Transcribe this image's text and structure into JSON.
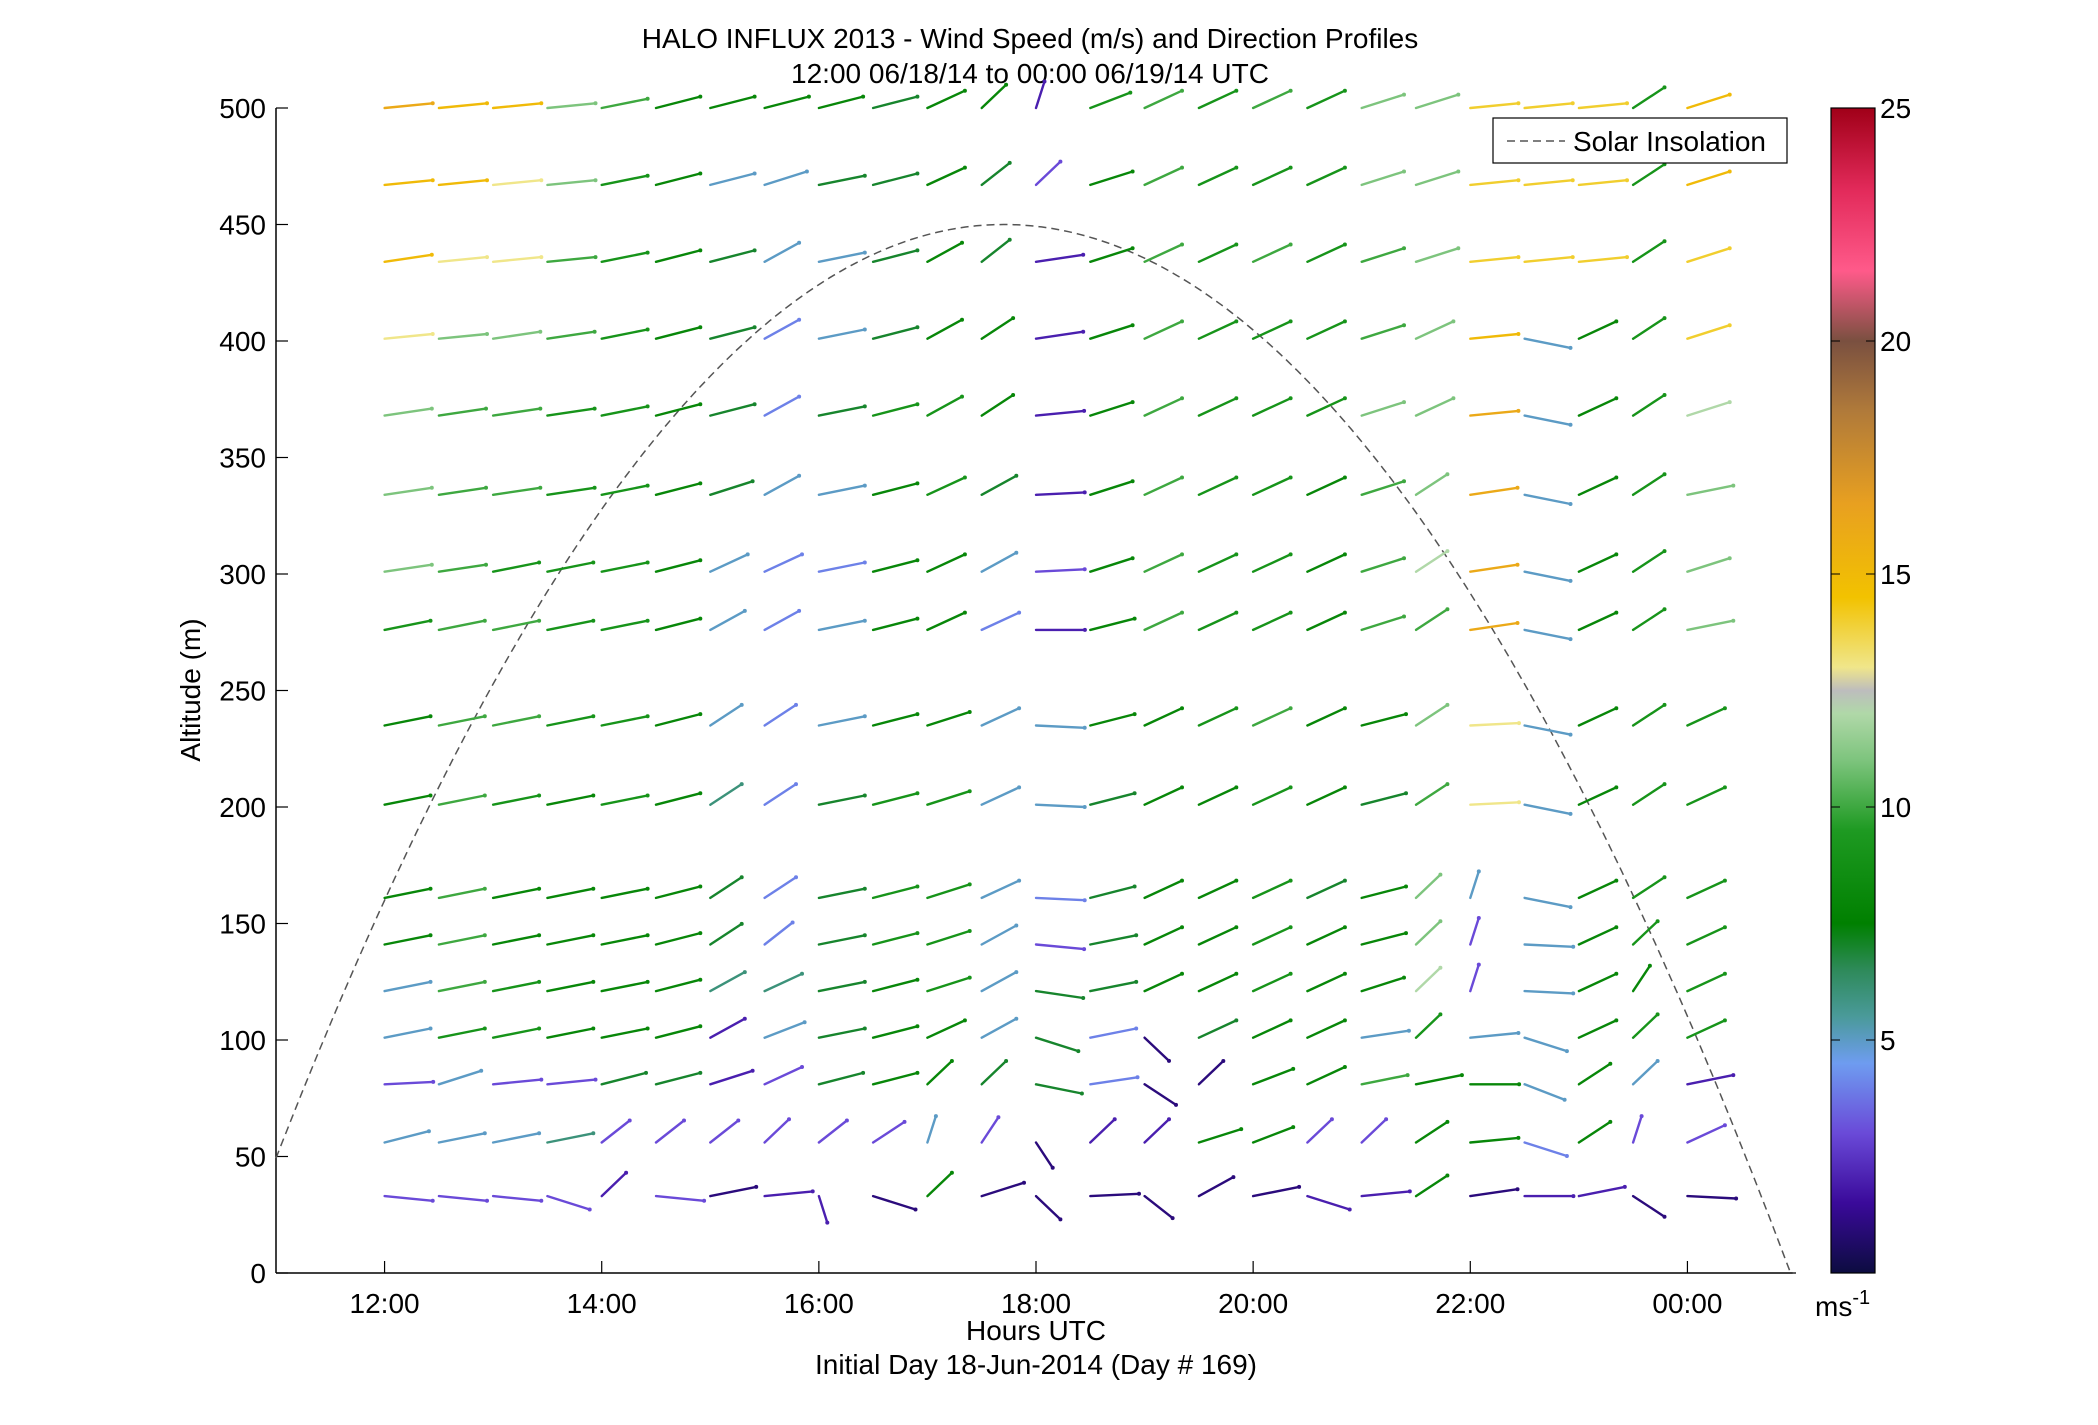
{
  "chart_data": {
    "type": "scatter",
    "title": "HALO INFLUX 2013 - Wind Speed (m/s) and Direction Profiles",
    "subtitle": "12:00 06/18/14 to 00:00 06/19/14  UTC",
    "xlabel": "Hours UTC",
    "ylabel": "Altitude (m)",
    "footer": "Initial Day 18-Jun-2014 (Day # 169)",
    "x_range_hours": [
      11,
      25
    ],
    "y_range": [
      0,
      500
    ],
    "x_ticks": [
      {
        "hour": 12,
        "label": "12:00"
      },
      {
        "hour": 14,
        "label": "14:00"
      },
      {
        "hour": 16,
        "label": "16:00"
      },
      {
        "hour": 18,
        "label": "18:00"
      },
      {
        "hour": 20,
        "label": "20:00"
      },
      {
        "hour": 22,
        "label": "22:00"
      },
      {
        "hour": 24,
        "label": "00:00"
      }
    ],
    "y_ticks": [
      0,
      50,
      100,
      150,
      200,
      250,
      300,
      350,
      400,
      450,
      500
    ],
    "legend": {
      "entries": [
        "Solar Insolation"
      ],
      "placement": "top-right"
    },
    "colorbar": {
      "range": [
        0,
        25
      ],
      "ticks": [
        5,
        10,
        15,
        20,
        25
      ],
      "unit_label": "ms",
      "unit_exponent": "-1"
    },
    "solar_insolation": {
      "peak_hour": 17.7,
      "peak_altitude": 450,
      "zero_hours": [
        10.6,
        24.95
      ]
    },
    "vector_layout": {
      "length_hours": 0.45,
      "slope_factor": 0.55
    },
    "altitudes": [
      33,
      56,
      81,
      101,
      121,
      141,
      161,
      201,
      235,
      276,
      301,
      334,
      368,
      401,
      434,
      467,
      500
    ],
    "hours": [
      12,
      12.5,
      13,
      13.5,
      14,
      14.5,
      15,
      15.5,
      16,
      16.5,
      17,
      17.5,
      18,
      18.5,
      19,
      19.5,
      20,
      20.5,
      21,
      21.5,
      22,
      22.5,
      23,
      23.5,
      24
    ],
    "wind_profiles": [
      {
        "time": "12:00",
        "hour": 12,
        "speeds": [
          3,
          5,
          3,
          5,
          5,
          8,
          8,
          8,
          8,
          9,
          11,
          11,
          11,
          13,
          15,
          15,
          16
        ],
        "angles": [
          -10,
          25,
          5,
          20,
          20,
          20,
          20,
          20,
          20,
          20,
          15,
          15,
          15,
          10,
          15,
          10,
          10
        ]
      },
      {
        "time": "12:30",
        "hour": 12.5,
        "speeds": [
          3,
          5,
          5,
          9,
          10,
          10,
          10,
          10,
          10,
          10,
          10,
          10,
          10,
          11,
          13,
          15,
          15
        ],
        "angles": [
          -10,
          20,
          30,
          20,
          20,
          20,
          20,
          20,
          20,
          20,
          15,
          15,
          15,
          10,
          10,
          10,
          10
        ]
      },
      {
        "time": "13:00",
        "hour": 13,
        "speeds": [
          3,
          5,
          3,
          9,
          9,
          8,
          8,
          9,
          10,
          10,
          9,
          10,
          10,
          11,
          13,
          13,
          15
        ],
        "angles": [
          -10,
          20,
          10,
          20,
          20,
          20,
          20,
          20,
          20,
          20,
          20,
          15,
          15,
          15,
          10,
          10,
          10
        ]
      },
      {
        "time": "13:30",
        "hour": 13.5,
        "speeds": [
          3,
          6,
          3,
          8,
          8,
          8,
          8,
          8,
          9,
          9,
          9,
          9,
          9,
          10,
          10,
          11,
          11
        ],
        "angles": [
          -30,
          20,
          10,
          20,
          20,
          20,
          20,
          20,
          20,
          20,
          20,
          15,
          15,
          15,
          10,
          10,
          10
        ]
      },
      {
        "time": "14:00",
        "hour": 14,
        "speeds": [
          2,
          3,
          7,
          8,
          8,
          8,
          8,
          9,
          9,
          9,
          9,
          9,
          9,
          9,
          9,
          9,
          10
        ],
        "angles": [
          60,
          55,
          25,
          20,
          20,
          20,
          20,
          20,
          20,
          20,
          20,
          20,
          20,
          20,
          20,
          20,
          20
        ]
      },
      {
        "time": "14:30",
        "hour": 14.5,
        "speeds": [
          3,
          3,
          7,
          8,
          8,
          8,
          8,
          8,
          8,
          8,
          8,
          8,
          8,
          8,
          8,
          8,
          8
        ],
        "angles": [
          -10,
          55,
          25,
          25,
          25,
          25,
          25,
          25,
          25,
          25,
          25,
          25,
          25,
          25,
          25,
          25,
          25
        ]
      },
      {
        "time": "15:00",
        "hour": 15,
        "speeds": [
          1,
          3,
          2,
          2,
          6,
          7,
          7,
          6,
          5,
          5,
          5,
          7,
          7,
          7,
          7,
          5,
          8
        ],
        "angles": [
          20,
          55,
          30,
          45,
          45,
          50,
          50,
          50,
          50,
          45,
          40,
          30,
          25,
          25,
          25,
          25,
          25
        ]
      },
      {
        "time": "15:30",
        "hour": 15.5,
        "speeds": [
          2,
          3,
          3,
          5,
          6,
          4,
          4,
          4,
          4,
          4,
          4,
          5,
          4,
          4,
          5,
          5,
          8
        ],
        "angles": [
          10,
          60,
          40,
          35,
          40,
          55,
          50,
          50,
          50,
          45,
          40,
          45,
          45,
          45,
          45,
          30,
          25
        ]
      },
      {
        "time": "16:00",
        "hour": 16,
        "speeds": [
          2,
          3,
          7,
          7,
          7,
          7,
          7,
          7,
          5,
          5,
          4,
          5,
          7,
          5,
          5,
          7,
          8
        ],
        "angles": [
          -80,
          55,
          25,
          20,
          20,
          20,
          20,
          20,
          20,
          20,
          20,
          20,
          20,
          20,
          20,
          20,
          25
        ]
      },
      {
        "time": "16:30",
        "hour": 16.5,
        "speeds": [
          1,
          3,
          8,
          8,
          8,
          9,
          9,
          9,
          8,
          8,
          8,
          8,
          9,
          7,
          7,
          7,
          7
        ],
        "angles": [
          -30,
          50,
          25,
          25,
          25,
          25,
          25,
          25,
          25,
          25,
          25,
          25,
          25,
          25,
          25,
          25,
          25
        ]
      },
      {
        "time": "17:00",
        "hour": 17,
        "speeds": [
          8,
          5,
          8,
          8,
          9,
          9,
          9,
          9,
          8,
          8,
          8,
          9,
          9,
          8,
          8,
          8,
          8
        ],
        "angles": [
          60,
          80,
          60,
          40,
          30,
          30,
          30,
          30,
          30,
          40,
          40,
          40,
          45,
          45,
          45,
          40,
          40
        ]
      },
      {
        "time": "17:30",
        "hour": 17.5,
        "speeds": [
          1,
          3,
          7,
          5,
          5,
          5,
          5,
          5,
          5,
          4,
          5,
          7,
          8,
          8,
          7,
          7,
          8
        ],
        "angles": [
          30,
          70,
          60,
          45,
          45,
          45,
          40,
          40,
          40,
          40,
          45,
          45,
          50,
          50,
          55,
          55,
          60
        ]
      },
      {
        "time": "18:00",
        "hour": 18,
        "speeds": [
          1,
          1,
          7,
          7,
          7,
          3,
          4,
          5,
          5,
          2,
          3,
          2,
          2,
          2,
          2,
          3,
          2
        ],
        "angles": [
          -60,
          -70,
          -20,
          -30,
          -15,
          -10,
          -5,
          -5,
          -5,
          0,
          5,
          5,
          10,
          15,
          15,
          60,
          80
        ]
      },
      {
        "time": "18:30",
        "hour": 18.5,
        "speeds": [
          1,
          2,
          4,
          4,
          7,
          7,
          7,
          7,
          8,
          8,
          8,
          8,
          8,
          8,
          8,
          8,
          9
        ],
        "angles": [
          5,
          60,
          15,
          20,
          20,
          20,
          25,
          25,
          25,
          25,
          30,
          30,
          30,
          30,
          30,
          30,
          35
        ]
      },
      {
        "time": "19:00",
        "hour": 19,
        "speeds": [
          1,
          2,
          1,
          1,
          8,
          8,
          8,
          8,
          8,
          10,
          10,
          10,
          10,
          10,
          10,
          10,
          10
        ],
        "angles": [
          -55,
          60,
          -50,
          -60,
          40,
          40,
          40,
          40,
          40,
          40,
          40,
          40,
          40,
          40,
          40,
          40,
          40
        ]
      },
      {
        "time": "19:30",
        "hour": 19.5,
        "speeds": [
          1,
          8,
          1,
          7,
          8,
          8,
          8,
          8,
          9,
          9,
          9,
          9,
          9,
          9,
          9,
          9,
          9
        ],
        "angles": [
          45,
          30,
          60,
          40,
          40,
          40,
          40,
          40,
          40,
          40,
          40,
          40,
          40,
          40,
          40,
          40,
          40
        ]
      },
      {
        "time": "20:00",
        "hour": 20,
        "speeds": [
          1,
          8,
          8,
          8,
          9,
          9,
          9,
          9,
          10,
          9,
          9,
          9,
          9,
          9,
          10,
          9,
          10
        ],
        "angles": [
          20,
          35,
          35,
          40,
          40,
          40,
          40,
          40,
          40,
          40,
          40,
          40,
          40,
          40,
          40,
          40,
          40
        ]
      },
      {
        "time": "20:30",
        "hour": 20.5,
        "speeds": [
          2,
          3,
          8,
          8,
          8,
          8,
          7,
          8,
          8,
          8,
          8,
          8,
          9,
          9,
          9,
          9,
          9
        ],
        "angles": [
          -30,
          60,
          40,
          40,
          40,
          40,
          40,
          40,
          40,
          40,
          40,
          40,
          40,
          40,
          40,
          40,
          40
        ]
      },
      {
        "time": "21:00",
        "hour": 21,
        "speeds": [
          2,
          3,
          10,
          5,
          8,
          8,
          8,
          7,
          8,
          10,
          10,
          10,
          11,
          10,
          10,
          11,
          11
        ],
        "angles": [
          10,
          60,
          20,
          15,
          30,
          25,
          25,
          25,
          25,
          30,
          30,
          30,
          30,
          30,
          30,
          30,
          30
        ]
      },
      {
        "time": "21:30",
        "hour": 21.5,
        "speeds": [
          8,
          8,
          8,
          9,
          12,
          11,
          11,
          10,
          11,
          10,
          12,
          11,
          11,
          11,
          11,
          11,
          11
        ],
        "angles": [
          50,
          50,
          20,
          60,
          60,
          60,
          60,
          50,
          50,
          50,
          50,
          50,
          40,
          40,
          30,
          30,
          30
        ]
      },
      {
        "time": "22:00",
        "hour": 22,
        "speeds": [
          1,
          8,
          8,
          5,
          3,
          3,
          5,
          13,
          13,
          16,
          16,
          16,
          16,
          15,
          14,
          14,
          14
        ],
        "angles": [
          15,
          10,
          0,
          10,
          80,
          80,
          80,
          5,
          5,
          15,
          15,
          15,
          10,
          10,
          10,
          10,
          10
        ]
      },
      {
        "time": "22:30",
        "hour": 22.5,
        "speeds": [
          2,
          4,
          5,
          5,
          5,
          5,
          5,
          5,
          5,
          5,
          5,
          5,
          5,
          5,
          14,
          14,
          14
        ],
        "angles": [
          0,
          -30,
          -35,
          -30,
          -5,
          -5,
          -20,
          -20,
          -20,
          -20,
          -20,
          -20,
          -20,
          -20,
          10,
          10,
          10
        ]
      },
      {
        "time": "23:00",
        "hour": 23,
        "speeds": [
          2,
          8,
          8,
          8,
          8,
          8,
          8,
          8,
          8,
          8,
          8,
          8,
          8,
          8,
          14,
          14,
          14
        ],
        "angles": [
          20,
          50,
          50,
          40,
          40,
          40,
          40,
          40,
          40,
          40,
          40,
          40,
          40,
          40,
          10,
          10,
          10
        ]
      },
      {
        "time": "23:30",
        "hour": 23.5,
        "speeds": [
          1,
          3,
          5,
          9,
          8,
          9,
          9,
          9,
          9,
          9,
          9,
          9,
          9,
          9,
          9,
          9,
          9
        ],
        "angles": [
          -50,
          80,
          60,
          60,
          70,
          60,
          50,
          50,
          50,
          50,
          50,
          50,
          50,
          50,
          50,
          50,
          50
        ]
      },
      {
        "time": "00:00",
        "hour": 24,
        "speeds": [
          1,
          3,
          2,
          9,
          9,
          9,
          9,
          9,
          9,
          11,
          11,
          11,
          12,
          14,
          14,
          15,
          15
        ],
        "angles": [
          -5,
          40,
          20,
          40,
          40,
          40,
          40,
          40,
          40,
          20,
          30,
          20,
          30,
          30,
          30,
          30,
          30
        ]
      }
    ]
  }
}
